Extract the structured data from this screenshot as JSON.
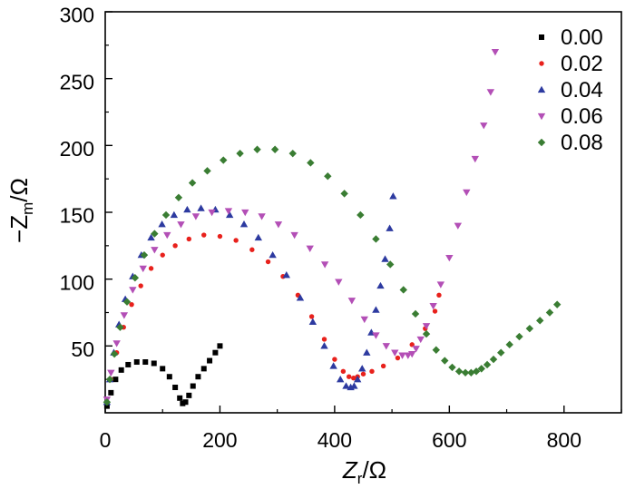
{
  "chart_data": {
    "type": "scatter",
    "title": "",
    "xlabel": {
      "main": "Z",
      "sub": "r",
      "unit": "/Ω"
    },
    "ylabel": {
      "main": "−Z",
      "sub": "m",
      "unit": "/Ω"
    },
    "xlim": [
      0,
      900
    ],
    "ylim": [
      0,
      300
    ],
    "xticks": [
      0,
      200,
      400,
      600,
      800
    ],
    "yticks": [
      50,
      100,
      150,
      200,
      250,
      300
    ],
    "xtick_labels": [
      "0",
      "200",
      "400",
      "600",
      "800"
    ],
    "ytick_labels": [
      "50",
      "100",
      "150",
      "200",
      "250",
      "300"
    ],
    "legend_position": "top-right",
    "series": [
      {
        "name": "0.00",
        "color": "#000000",
        "marker": "square",
        "x": [
          3,
          10,
          18,
          28,
          40,
          55,
          70,
          85,
          100,
          112,
          122,
          130,
          135,
          140,
          146,
          153,
          162,
          172,
          182,
          192,
          200
        ],
        "y": [
          5,
          15,
          25,
          32,
          36,
          38,
          38,
          37,
          33,
          27,
          19,
          11,
          7,
          8,
          13,
          20,
          27,
          33,
          39,
          45,
          50
        ]
      },
      {
        "name": "0.02",
        "color": "#e8211c",
        "marker": "circle",
        "x": [
          3,
          10,
          20,
          32,
          46,
          62,
          80,
          100,
          122,
          146,
          172,
          200,
          228,
          256,
          284,
          310,
          336,
          360,
          382,
          400,
          415,
          425,
          433,
          440,
          450,
          465,
          485,
          510,
          535,
          558,
          575,
          582
        ],
        "y": [
          8,
          25,
          45,
          64,
          81,
          95,
          108,
          118,
          125,
          130,
          133,
          132,
          129,
          122,
          113,
          102,
          88,
          72,
          55,
          40,
          31,
          27,
          26,
          27,
          29,
          31,
          35,
          41,
          51,
          63,
          76,
          88
        ]
      },
      {
        "name": "0.04",
        "color": "#2d3aa0",
        "marker": "triangle-up",
        "x": [
          3,
          8,
          15,
          24,
          35,
          48,
          63,
          80,
          99,
          120,
          143,
          167,
          192,
          217,
          242,
          267,
          292,
          316,
          340,
          362,
          382,
          398,
          410,
          420,
          428,
          434,
          440,
          448,
          456,
          464,
          472,
          480,
          488,
          496,
          502
        ],
        "y": [
          8,
          25,
          45,
          66,
          85,
          102,
          118,
          131,
          141,
          148,
          152,
          153,
          152,
          148,
          141,
          131,
          118,
          103,
          86,
          68,
          50,
          35,
          25,
          20,
          19,
          20,
          25,
          33,
          45,
          60,
          77,
          95,
          115,
          138,
          162
        ]
      },
      {
        "name": "0.06",
        "color": "#b34fb6",
        "marker": "triangle-down",
        "x": [
          3,
          10,
          20,
          33,
          48,
          66,
          86,
          108,
          132,
          158,
          186,
          215,
          244,
          273,
          302,
          330,
          357,
          383,
          407,
          430,
          452,
          472,
          490,
          505,
          518,
          528,
          535,
          542,
          550,
          560,
          572,
          585,
          600,
          615,
          630,
          645,
          660,
          672,
          680
        ],
        "y": [
          10,
          30,
          52,
          73,
          92,
          108,
          122,
          133,
          141,
          147,
          150,
          151,
          150,
          147,
          141,
          133,
          123,
          111,
          98,
          84,
          70,
          58,
          50,
          45,
          43,
          43,
          44,
          48,
          55,
          65,
          80,
          96,
          116,
          140,
          165,
          190,
          215,
          240,
          270
        ]
      },
      {
        "name": "0.08",
        "color": "#3a7d33",
        "marker": "diamond",
        "x": [
          3,
          8,
          16,
          26,
          38,
          52,
          68,
          86,
          106,
          128,
          152,
          178,
          206,
          235,
          265,
          296,
          327,
          358,
          388,
          417,
          445,
          472,
          497,
          520,
          541,
          560,
          577,
          592,
          605,
          617,
          628,
          638,
          647,
          656,
          666,
          677,
          690,
          705,
          722,
          740,
          758,
          775,
          788
        ],
        "y": [
          8,
          25,
          44,
          64,
          83,
          101,
          118,
          134,
          148,
          161,
          172,
          181,
          189,
          194,
          197,
          197,
          194,
          187,
          177,
          164,
          148,
          130,
          111,
          92,
          74,
          59,
          47,
          39,
          34,
          31,
          30,
          30,
          31,
          33,
          36,
          40,
          45,
          51,
          57,
          63,
          69,
          75,
          81
        ]
      }
    ]
  }
}
